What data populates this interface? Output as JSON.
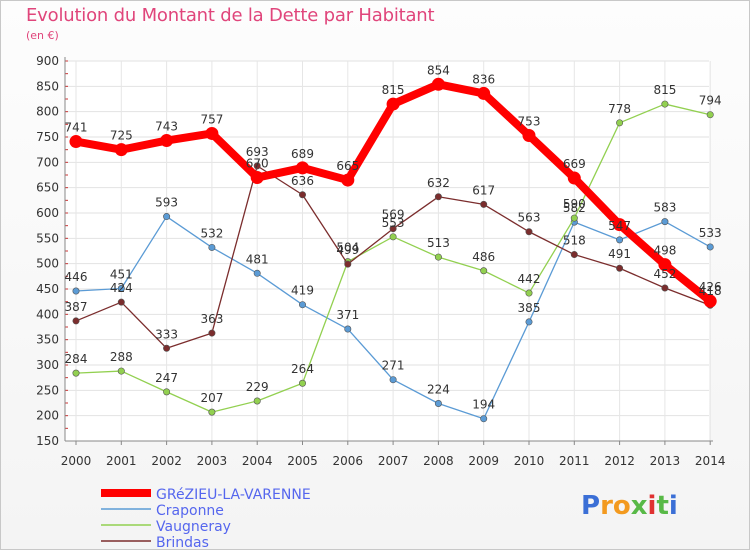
{
  "header": {
    "title": "Evolution du Montant de la Dette par Habitant",
    "unit": "(en €)"
  },
  "logo": {
    "letters": [
      "P",
      "r",
      "o",
      "x",
      "i",
      "t",
      "i"
    ],
    "colors": [
      "#3b6fd6",
      "#f39a1f",
      "#f39a1f",
      "#58b947",
      "#e03131",
      "#58b947",
      "#3b6fd6"
    ]
  },
  "chart_data": {
    "type": "line",
    "title": "Evolution du Montant de la Dette par Habitant",
    "ylabel": "(en €)",
    "xlabel": "",
    "x": [
      "2000",
      "2001",
      "2002",
      "2003",
      "2004",
      "2005",
      "2006",
      "2007",
      "2008",
      "2009",
      "2010",
      "2011",
      "2012",
      "2013",
      "2014"
    ],
    "ylim": [
      150,
      900
    ],
    "yticks": [
      150,
      200,
      250,
      300,
      350,
      400,
      450,
      500,
      550,
      600,
      650,
      700,
      750,
      800,
      850,
      900
    ],
    "grid": true,
    "legend_position": "bottom-left",
    "series": [
      {
        "name": "GRéZIEU-LA-VARENNE",
        "color": "#ff0000",
        "values": [
          741,
          725,
          743,
          757,
          670,
          689,
          665,
          815,
          854,
          836,
          753,
          669,
          577,
          498,
          426
        ],
        "labels": [
          "741",
          "725",
          "743",
          "757",
          "670",
          "689",
          "665",
          "815",
          "854",
          "836",
          "753",
          "669",
          "",
          "498",
          "426"
        ]
      },
      {
        "name": "Craponne",
        "color": "#5b9bd5",
        "values": [
          446,
          451,
          593,
          532,
          481,
          419,
          371,
          271,
          224,
          194,
          385,
          582,
          547,
          583,
          533
        ],
        "labels": [
          "446",
          "451",
          "593",
          "532",
          "481",
          "419",
          "371",
          "271",
          "224",
          "194",
          "385",
          "582",
          "547",
          "583",
          "533"
        ]
      },
      {
        "name": "Vaugneray",
        "color": "#92d050",
        "values": [
          284,
          288,
          247,
          207,
          229,
          264,
          504,
          553,
          513,
          486,
          442,
          590,
          778,
          815,
          794
        ],
        "labels": [
          "284",
          "288",
          "247",
          "207",
          "229",
          "264",
          "504",
          "553",
          "513",
          "486",
          "442",
          "590",
          "778",
          "815",
          "794"
        ]
      },
      {
        "name": "Brindas",
        "color": "#7b2d2d",
        "values": [
          387,
          424,
          333,
          363,
          693,
          636,
          499,
          569,
          632,
          617,
          563,
          518,
          491,
          452,
          418
        ],
        "labels": [
          "387",
          "424",
          "333",
          "363",
          "693",
          "636",
          "499",
          "569",
          "632",
          "617",
          "563",
          "518",
          "491",
          "452",
          "418"
        ]
      }
    ]
  }
}
